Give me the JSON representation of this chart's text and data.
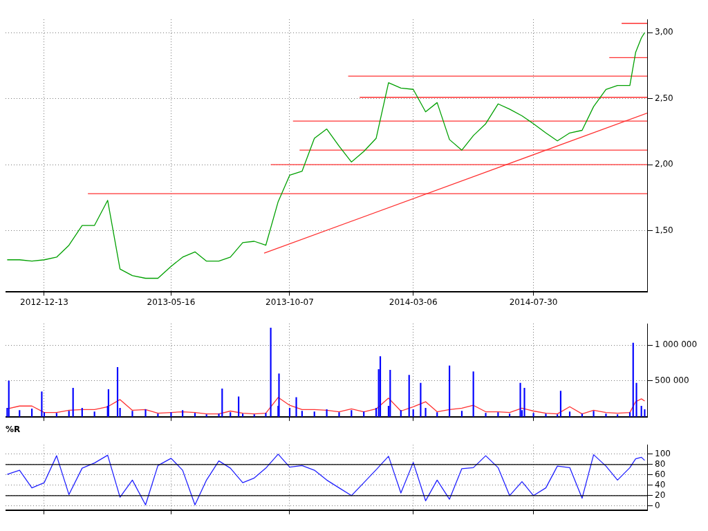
{
  "chart_data": [
    {
      "type": "line",
      "xlim": [
        "2012-10-27",
        "2014-12-15"
      ],
      "xticks": [
        "2012-12-13",
        "2013-05-16",
        "2013-10-07",
        "2014-03-06",
        "2014-07-30"
      ],
      "ylim": [
        1.04,
        3.1
      ],
      "yticks": [
        {
          "value": 1.5,
          "label": "1,50"
        },
        {
          "value": 2,
          "label": "2,00"
        },
        {
          "value": 2.5,
          "label": "2,50"
        },
        {
          "value": 3,
          "label": "3,00"
        }
      ],
      "grid": true,
      "marker": "none",
      "line_style": "solid",
      "x": [
        "2012-10-29",
        "2012-11-13",
        "2012-11-28",
        "2012-12-13",
        "2012-12-28",
        "2013-01-12",
        "2013-01-28",
        "2013-02-12",
        "2013-02-28",
        "2013-03-15",
        "2013-03-30",
        "2013-04-15",
        "2013-04-30",
        "2013-05-16",
        "2013-05-30",
        "2013-06-14",
        "2013-06-28",
        "2013-07-13",
        "2013-07-27",
        "2013-08-11",
        "2013-08-25",
        "2013-09-08",
        "2013-09-23",
        "2013-10-07",
        "2013-10-22",
        "2013-11-06",
        "2013-11-21",
        "2013-12-06",
        "2013-12-21",
        "2014-01-05",
        "2014-01-20",
        "2014-02-04",
        "2014-02-19",
        "2014-03-06",
        "2014-03-21",
        "2014-04-04",
        "2014-04-19",
        "2014-05-04",
        "2014-05-18",
        "2014-06-02",
        "2014-06-17",
        "2014-07-01",
        "2014-07-16",
        "2014-07-30",
        "2014-08-14",
        "2014-08-28",
        "2014-09-12",
        "2014-09-27",
        "2014-10-11",
        "2014-10-26",
        "2014-11-09",
        "2014-11-24",
        "2014-12-01",
        "2014-12-08",
        "2014-12-12"
      ],
      "series": [
        {
          "color": "#00a000",
          "values": [
            1.28,
            1.28,
            1.27,
            1.28,
            1.3,
            1.39,
            1.54,
            1.54,
            1.73,
            1.21,
            1.16,
            1.14,
            1.14,
            1.23,
            1.3,
            1.34,
            1.27,
            1.27,
            1.3,
            1.41,
            1.42,
            1.39,
            1.72,
            1.92,
            1.95,
            2.2,
            2.27,
            2.14,
            2.02,
            2.1,
            2.2,
            2.62,
            2.58,
            2.57,
            2.4,
            2.47,
            2.19,
            2.11,
            2.22,
            2.31,
            2.46,
            2.42,
            2.37,
            2.31,
            2.24,
            2.18,
            2.24,
            2.26,
            2.44,
            2.57,
            2.6,
            2.6,
            2.85,
            2.96,
            3.0
          ]
        },
        {
          "type": "line",
          "color": "#ff3030",
          "x": [
            "2013-02-04",
            "2014-12-15"
          ],
          "values": [
            1.78,
            1.78
          ]
        },
        {
          "type": "line",
          "color": "#ff3030",
          "x": [
            "2013-09-14",
            "2014-12-15"
          ],
          "values": [
            2.0,
            2.0
          ]
        },
        {
          "type": "line",
          "color": "#ff3030",
          "x": [
            "2013-10-19",
            "2014-12-15"
          ],
          "values": [
            2.11,
            2.11
          ]
        },
        {
          "type": "line",
          "color": "#ff3030",
          "x": [
            "2013-10-11",
            "2014-12-15"
          ],
          "values": [
            2.33,
            2.33
          ]
        },
        {
          "type": "line",
          "color": "#ff3030",
          "x": [
            "2013-12-31",
            "2014-12-15"
          ],
          "values": [
            2.51,
            2.51
          ]
        },
        {
          "type": "line",
          "color": "#ff3030",
          "x": [
            "2013-12-17",
            "2014-12-15"
          ],
          "values": [
            2.67,
            2.67
          ]
        },
        {
          "type": "line",
          "color": "#ff3030",
          "x": [
            "2014-10-30",
            "2014-12-15"
          ],
          "values": [
            2.81,
            2.81
          ]
        },
        {
          "type": "line",
          "color": "#ff3030",
          "x": [
            "2014-11-14",
            "2014-12-15"
          ],
          "values": [
            3.07,
            3.07
          ]
        },
        {
          "type": "line",
          "color": "#ff3030",
          "x": [
            "2013-09-06",
            "2014-12-15"
          ],
          "values": [
            1.33,
            2.39
          ]
        }
      ]
    },
    {
      "type": "bar",
      "xlim": [
        "2012-10-27",
        "2014-12-15"
      ],
      "xticks": [
        "2012-12-13",
        "2013-05-16",
        "2013-10-07",
        "2014-03-06",
        "2014-07-30"
      ],
      "ylim": [
        0,
        1300000
      ],
      "yticks": [
        {
          "value": 500000,
          "label": "500 000"
        },
        {
          "value": 1000000,
          "label": "1 000 000"
        }
      ],
      "grid": true,
      "tick_labels": "y",
      "marker": "none",
      "line_style": "solid",
      "series": [
        {
          "color": "#0000ff",
          "x": [
            "2012-10-29",
            "2012-10-31",
            "2012-11-13",
            "2012-11-28",
            "2012-12-10",
            "2012-12-13",
            "2012-12-28",
            "2013-01-12",
            "2013-01-17",
            "2013-01-28",
            "2013-02-12",
            "2013-02-28",
            "2013-03-01",
            "2013-03-12",
            "2013-03-15",
            "2013-03-30",
            "2013-04-15",
            "2013-04-30",
            "2013-05-16",
            "2013-05-30",
            "2013-06-14",
            "2013-06-28",
            "2013-07-13",
            "2013-07-17",
            "2013-07-27",
            "2013-08-06",
            "2013-08-11",
            "2013-08-25",
            "2013-09-08",
            "2013-09-14",
            "2013-09-23",
            "2013-09-24",
            "2013-10-07",
            "2013-10-15",
            "2013-10-22",
            "2013-11-06",
            "2013-11-21",
            "2013-12-06",
            "2013-12-21",
            "2014-01-05",
            "2014-01-20",
            "2014-01-23",
            "2014-01-25",
            "2014-02-04",
            "2014-02-06",
            "2014-02-19",
            "2014-03-01",
            "2014-03-06",
            "2014-03-15",
            "2014-03-21",
            "2014-04-04",
            "2014-04-19",
            "2014-05-04",
            "2014-05-18",
            "2014-06-02",
            "2014-06-17",
            "2014-07-01",
            "2014-07-14",
            "2014-07-16",
            "2014-07-19",
            "2014-07-30",
            "2014-08-14",
            "2014-08-28",
            "2014-09-01",
            "2014-09-12",
            "2014-09-27",
            "2014-10-11",
            "2014-10-26",
            "2014-11-09",
            "2014-11-24",
            "2014-11-28",
            "2014-12-02",
            "2014-12-08",
            "2014-12-12"
          ],
          "values": [
            120000,
            500000,
            90000,
            110000,
            350000,
            60000,
            50000,
            80000,
            400000,
            120000,
            70000,
            150000,
            380000,
            690000,
            120000,
            80000,
            100000,
            40000,
            60000,
            90000,
            50000,
            30000,
            40000,
            390000,
            60000,
            280000,
            40000,
            30000,
            50000,
            1240000,
            150000,
            600000,
            120000,
            270000,
            80000,
            70000,
            100000,
            60000,
            90000,
            70000,
            120000,
            660000,
            840000,
            150000,
            650000,
            90000,
            580000,
            100000,
            470000,
            120000,
            60000,
            710000,
            80000,
            630000,
            50000,
            60000,
            40000,
            470000,
            90000,
            400000,
            50000,
            40000,
            30000,
            360000,
            70000,
            40000,
            80000,
            40000,
            30000,
            60000,
            1030000,
            470000,
            150000,
            100000
          ]
        },
        {
          "type": "line",
          "color": "#ff3030",
          "x": [
            "2012-10-29",
            "2012-11-13",
            "2012-11-28",
            "2012-12-13",
            "2012-12-28",
            "2013-01-12",
            "2013-01-28",
            "2013-02-12",
            "2013-02-28",
            "2013-03-15",
            "2013-03-30",
            "2013-04-15",
            "2013-04-30",
            "2013-05-16",
            "2013-05-30",
            "2013-06-14",
            "2013-06-28",
            "2013-07-13",
            "2013-07-27",
            "2013-08-11",
            "2013-08-25",
            "2013-09-08",
            "2013-09-23",
            "2013-10-07",
            "2013-10-22",
            "2013-11-06",
            "2013-11-21",
            "2013-12-06",
            "2013-12-21",
            "2014-01-05",
            "2014-01-20",
            "2014-02-04",
            "2014-02-19",
            "2014-03-06",
            "2014-03-21",
            "2014-04-04",
            "2014-04-19",
            "2014-05-04",
            "2014-05-18",
            "2014-06-02",
            "2014-06-17",
            "2014-07-01",
            "2014-07-16",
            "2014-07-30",
            "2014-08-14",
            "2014-08-28",
            "2014-09-12",
            "2014-09-27",
            "2014-10-11",
            "2014-10-26",
            "2014-11-09",
            "2014-11-24",
            "2014-12-01",
            "2014-12-08",
            "2014-12-12"
          ],
          "values": [
            110000,
            150000,
            150000,
            60000,
            60000,
            90000,
            100000,
            100000,
            140000,
            240000,
            90000,
            100000,
            50000,
            60000,
            70000,
            60000,
            40000,
            40000,
            80000,
            50000,
            40000,
            50000,
            270000,
            160000,
            100000,
            100000,
            90000,
            70000,
            110000,
            70000,
            110000,
            260000,
            80000,
            140000,
            210000,
            70000,
            100000,
            120000,
            160000,
            70000,
            70000,
            60000,
            120000,
            80000,
            50000,
            40000,
            140000,
            40000,
            90000,
            60000,
            50000,
            60000,
            210000,
            250000,
            220000
          ]
        }
      ]
    },
    {
      "type": "line",
      "title": "%R",
      "xlim": [
        "2012-10-27",
        "2014-12-15"
      ],
      "xticks": [
        "2012-12-13",
        "2013-05-16",
        "2013-10-07",
        "2014-03-06",
        "2014-07-30"
      ],
      "ylim": [
        -8,
        118
      ],
      "yticks": [
        0,
        20,
        40,
        60,
        80,
        100
      ],
      "grid": true,
      "tick_labels": "y",
      "marker": "none",
      "line_style": "solid",
      "x": [
        "2012-10-29",
        "2012-11-13",
        "2012-11-28",
        "2012-12-13",
        "2012-12-28",
        "2013-01-12",
        "2013-01-28",
        "2013-02-12",
        "2013-02-28",
        "2013-03-15",
        "2013-03-30",
        "2013-04-15",
        "2013-04-30",
        "2013-05-16",
        "2013-05-30",
        "2013-06-14",
        "2013-06-28",
        "2013-07-13",
        "2013-07-27",
        "2013-08-11",
        "2013-08-25",
        "2013-09-08",
        "2013-09-23",
        "2013-10-07",
        "2013-10-22",
        "2013-11-06",
        "2013-11-21",
        "2013-12-06",
        "2013-12-21",
        "2014-01-05",
        "2014-01-20",
        "2014-02-04",
        "2014-02-19",
        "2014-03-06",
        "2014-03-21",
        "2014-04-04",
        "2014-04-19",
        "2014-05-04",
        "2014-05-18",
        "2014-06-02",
        "2014-06-17",
        "2014-07-01",
        "2014-07-16",
        "2014-07-30",
        "2014-08-14",
        "2014-08-28",
        "2014-09-12",
        "2014-09-27",
        "2014-10-11",
        "2014-10-26",
        "2014-11-09",
        "2014-11-24",
        "2014-12-01",
        "2014-12-08",
        "2014-12-12"
      ],
      "series": [
        {
          "color": "#000000",
          "x": [
            "2012-10-27",
            "2014-12-15"
          ],
          "values": [
            80,
            80
          ]
        },
        {
          "color": "#000000",
          "x": [
            "2012-10-27",
            "2014-12-15"
          ],
          "values": [
            20,
            20
          ]
        },
        {
          "color": "#2020ff",
          "values": [
            61,
            69,
            35,
            45,
            97,
            22,
            73,
            83,
            98,
            17,
            50,
            2,
            78,
            92,
            69,
            2,
            50,
            87,
            73,
            45,
            54,
            73,
            100,
            75,
            78,
            69,
            50,
            35,
            20,
            45,
            70,
            96,
            25,
            84,
            10,
            50,
            13,
            72,
            74,
            97,
            74,
            20,
            47,
            20,
            35,
            77,
            74,
            15,
            99,
            77,
            50,
            74,
            91,
            94,
            88
          ]
        }
      ]
    }
  ]
}
